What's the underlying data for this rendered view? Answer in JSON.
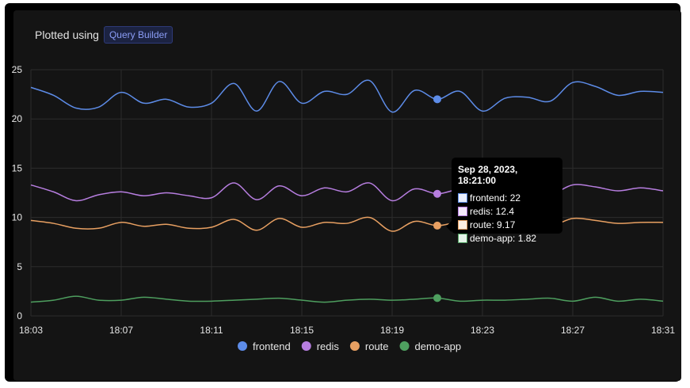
{
  "header": {
    "prefix": "Plotted using",
    "badge": "Query Builder"
  },
  "colors": {
    "frontend": "#5d8ce8",
    "redis": "#b77ee0",
    "route": "#e8a062",
    "demo-app": "#4e9f5f",
    "grid": "#2c2c2c",
    "axis_text": "#e6e6e6"
  },
  "chart_data": {
    "type": "line",
    "x": [
      "18:03",
      "18:04",
      "18:05",
      "18:06",
      "18:07",
      "18:08",
      "18:09",
      "18:10",
      "18:11",
      "18:12",
      "18:13",
      "18:14",
      "18:15",
      "18:16",
      "18:17",
      "18:18",
      "18:19",
      "18:20",
      "18:21",
      "18:22",
      "18:23",
      "18:24",
      "18:25",
      "18:26",
      "18:27",
      "18:28",
      "18:29",
      "18:30",
      "18:31"
    ],
    "xticks": [
      "18:03",
      "18:07",
      "18:11",
      "18:15",
      "18:19",
      "18:23",
      "18:27",
      "18:31"
    ],
    "yticks": [
      0,
      5,
      10,
      15,
      20,
      25
    ],
    "ylim": [
      0,
      25
    ],
    "grid": true,
    "legend": "bottom-center",
    "series": [
      {
        "name": "frontend",
        "values": [
          23.2,
          22.4,
          21.1,
          21.2,
          22.7,
          21.6,
          22.0,
          21.2,
          21.6,
          23.6,
          20.8,
          23.8,
          21.6,
          22.8,
          22.5,
          23.9,
          20.7,
          22.9,
          22.0,
          22.8,
          20.8,
          22.1,
          22.2,
          21.8,
          23.7,
          23.3,
          22.4,
          22.8,
          22.7
        ]
      },
      {
        "name": "redis",
        "values": [
          13.3,
          12.6,
          11.7,
          12.3,
          12.6,
          12.2,
          12.5,
          12.2,
          12.0,
          13.5,
          11.8,
          13.2,
          12.2,
          13.0,
          12.6,
          13.5,
          11.7,
          12.9,
          12.4,
          12.8,
          12.0,
          12.6,
          12.5,
          12.3,
          13.3,
          13.1,
          12.7,
          13.0,
          12.7
        ]
      },
      {
        "name": "route",
        "values": [
          9.7,
          9.4,
          8.9,
          8.9,
          9.5,
          9.1,
          9.3,
          8.9,
          9.0,
          9.8,
          8.7,
          9.9,
          9.0,
          9.5,
          9.4,
          10.0,
          8.6,
          9.6,
          9.17,
          9.5,
          9.0,
          9.4,
          9.3,
          9.1,
          9.9,
          9.7,
          9.4,
          9.5,
          9.5
        ]
      },
      {
        "name": "demo-app",
        "values": [
          1.4,
          1.6,
          2.0,
          1.6,
          1.6,
          1.9,
          1.7,
          1.5,
          1.5,
          1.6,
          1.7,
          1.8,
          1.6,
          1.4,
          1.6,
          1.7,
          1.6,
          1.7,
          1.82,
          1.5,
          1.6,
          1.6,
          1.7,
          1.8,
          1.5,
          1.9,
          1.5,
          1.7,
          1.5
        ]
      }
    ],
    "highlight_index": 18,
    "tooltip": {
      "title": "Sep 28, 2023, 18:21:00",
      "rows": [
        "frontend: 22",
        "redis: 12.4",
        "route: 9.17",
        "demo-app: 1.82"
      ]
    }
  }
}
